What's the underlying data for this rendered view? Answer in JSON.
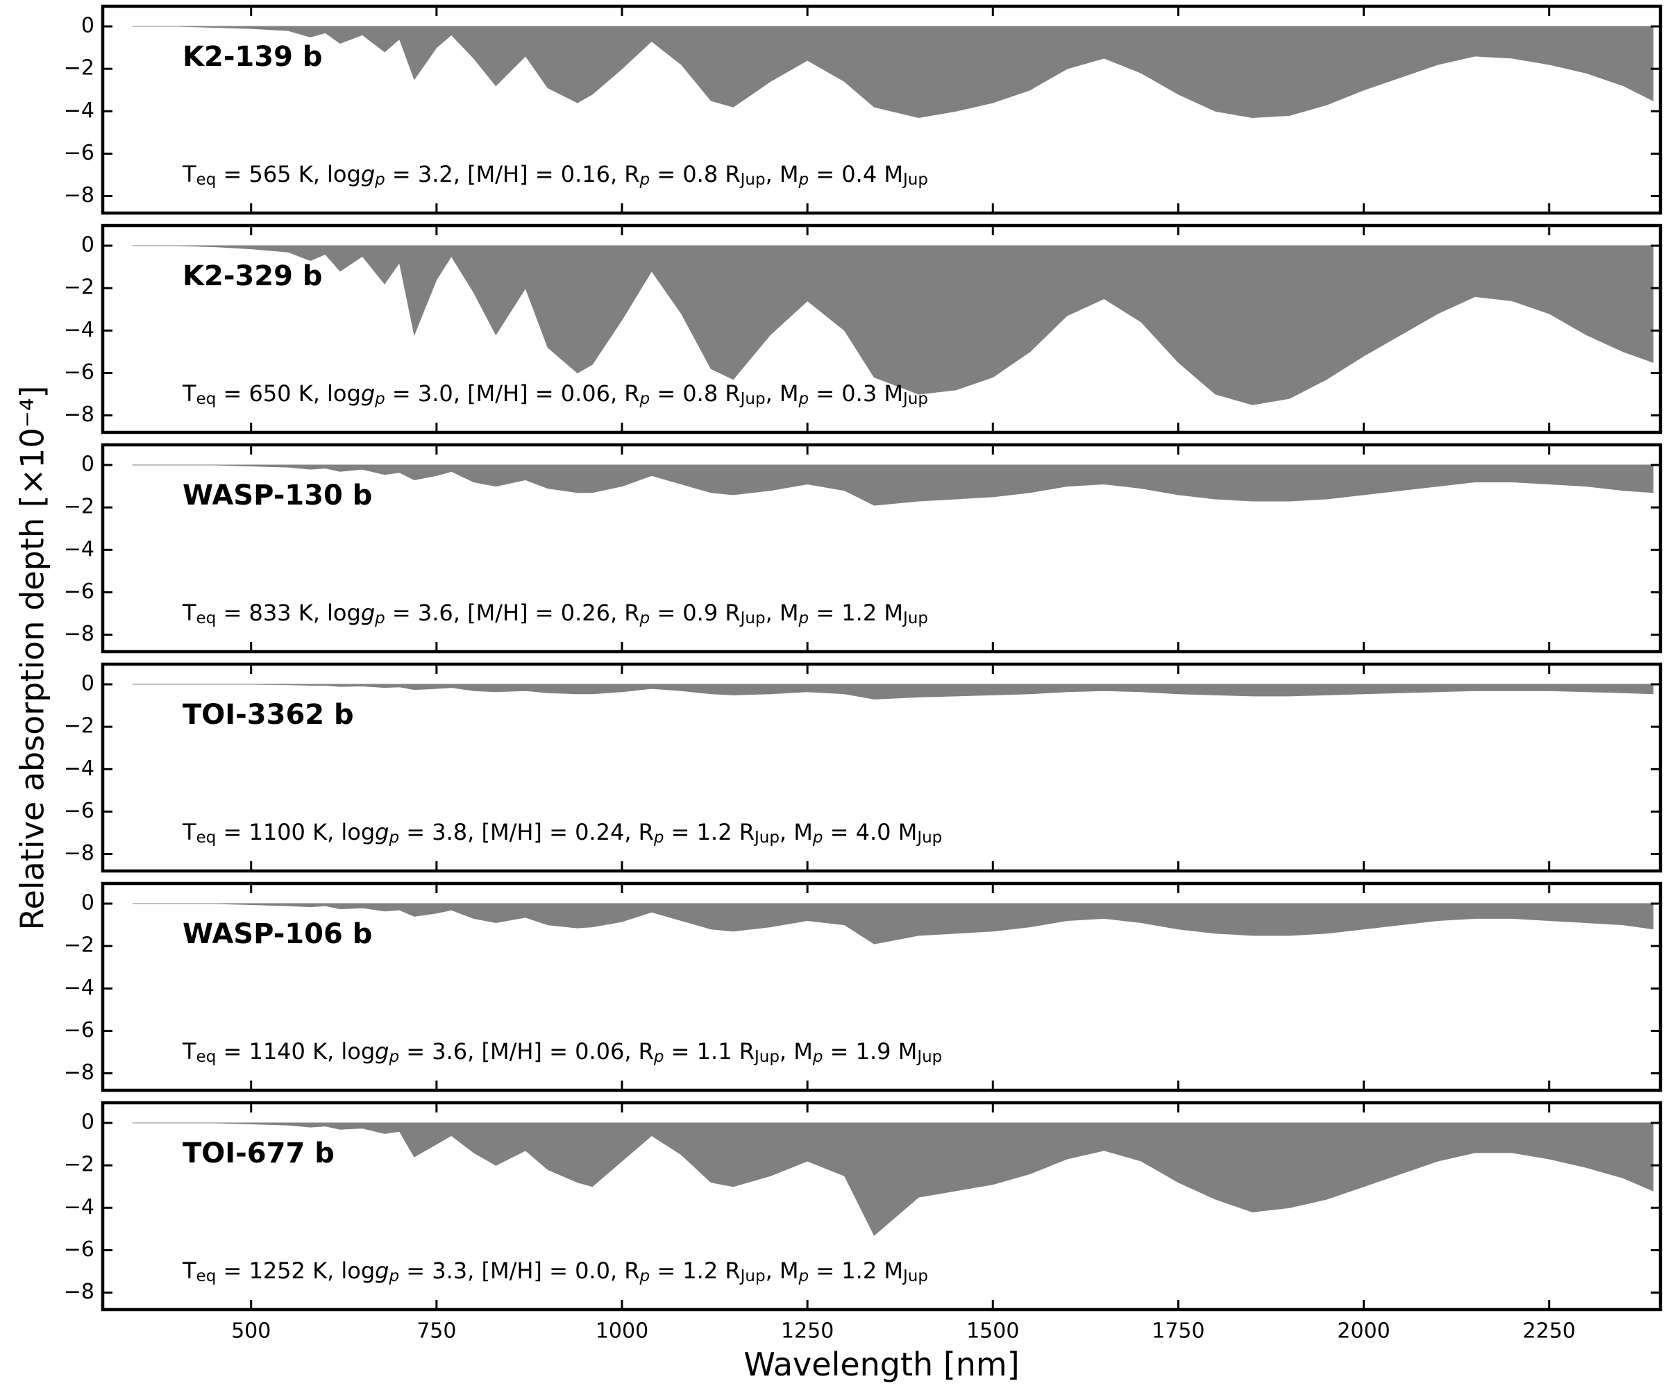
{
  "ylabel": "Relative absorption depth [×10⁻⁴]",
  "xlabel": "Wavelength [nm]",
  "chart_data": [
    {
      "type": "area",
      "name": "K2-139 b",
      "color": "#808080",
      "annotation": [
        {
          "text": "T",
          "style": "normal"
        },
        {
          "text": "eq",
          "style": "sub"
        },
        {
          "text": " = 565 K, log",
          "style": "normal"
        },
        {
          "text": "g",
          "style": "italic"
        },
        {
          "text": "p",
          "style": "italic-sub"
        },
        {
          "text": " = 3.2, [M/H] = 0.16, R",
          "style": "normal"
        },
        {
          "text": "p",
          "style": "italic-sub"
        },
        {
          "text": " = 0.8 R",
          "style": "normal"
        },
        {
          "text": "Jup",
          "style": "sub"
        },
        {
          "text": ", M",
          "style": "normal"
        },
        {
          "text": "p",
          "style": "italic-sub"
        },
        {
          "text": " = 0.4 M",
          "style": "normal"
        },
        {
          "text": "Jup",
          "style": "sub"
        }
      ],
      "x": [
        340,
        400,
        450,
        500,
        550,
        580,
        600,
        620,
        650,
        680,
        700,
        720,
        750,
        770,
        800,
        830,
        870,
        900,
        940,
        960,
        1000,
        1040,
        1080,
        1120,
        1150,
        1200,
        1250,
        1300,
        1340,
        1400,
        1450,
        1500,
        1550,
        1600,
        1650,
        1700,
        1750,
        1800,
        1850,
        1900,
        1950,
        2000,
        2050,
        2100,
        2150,
        2200,
        2250,
        2300,
        2350,
        2390
      ],
      "values": [
        0,
        0,
        -0.05,
        -0.1,
        -0.2,
        -0.5,
        -0.3,
        -0.8,
        -0.4,
        -1.2,
        -0.6,
        -2.5,
        -1.0,
        -0.4,
        -1.5,
        -2.8,
        -1.4,
        -2.9,
        -3.6,
        -3.2,
        -2.0,
        -0.7,
        -1.8,
        -3.5,
        -3.8,
        -2.6,
        -1.6,
        -2.6,
        -3.8,
        -4.3,
        -4.0,
        -3.6,
        -3.0,
        -2.0,
        -1.5,
        -2.2,
        -3.2,
        -4.0,
        -4.3,
        -4.2,
        -3.7,
        -3.0,
        -2.4,
        -1.8,
        -1.4,
        -1.5,
        -1.8,
        -2.2,
        -2.8,
        -3.5
      ],
      "xlim": [
        300,
        2400
      ],
      "xticks": [
        500,
        750,
        1000,
        1250,
        1500,
        1750,
        2000,
        2250
      ],
      "ylim": [
        -8.8,
        0.95
      ],
      "yticks": [
        -8,
        -6,
        -4,
        -2,
        0
      ]
    },
    {
      "type": "area",
      "name": "K2-329 b",
      "color": "#808080",
      "annotation": [
        {
          "text": "T",
          "style": "normal"
        },
        {
          "text": "eq",
          "style": "sub"
        },
        {
          "text": " = 650 K, log",
          "style": "normal"
        },
        {
          "text": "g",
          "style": "italic"
        },
        {
          "text": "p",
          "style": "italic-sub"
        },
        {
          "text": " = 3.0, [M/H] = 0.06, R",
          "style": "normal"
        },
        {
          "text": "p",
          "style": "italic-sub"
        },
        {
          "text": " = 0.8 R",
          "style": "normal"
        },
        {
          "text": "Jup",
          "style": "sub"
        },
        {
          "text": ", M",
          "style": "normal"
        },
        {
          "text": "p",
          "style": "italic-sub"
        },
        {
          "text": " = 0.3 M",
          "style": "normal"
        },
        {
          "text": "Jup",
          "style": "sub"
        }
      ],
      "x": [
        340,
        400,
        450,
        500,
        550,
        580,
        600,
        620,
        650,
        680,
        700,
        720,
        750,
        770,
        800,
        830,
        870,
        900,
        940,
        960,
        1000,
        1040,
        1080,
        1120,
        1150,
        1200,
        1250,
        1300,
        1340,
        1400,
        1450,
        1500,
        1550,
        1600,
        1650,
        1700,
        1750,
        1800,
        1850,
        1900,
        1950,
        2000,
        2050,
        2100,
        2150,
        2200,
        2250,
        2300,
        2350,
        2390
      ],
      "values": [
        0,
        0,
        -0.05,
        -0.15,
        -0.3,
        -0.7,
        -0.4,
        -1.2,
        -0.5,
        -1.8,
        -0.8,
        -4.2,
        -1.6,
        -0.5,
        -2.2,
        -4.2,
        -2.0,
        -4.8,
        -6.0,
        -5.6,
        -3.5,
        -1.2,
        -3.2,
        -5.8,
        -6.3,
        -4.2,
        -2.6,
        -4.0,
        -6.2,
        -7.0,
        -6.8,
        -6.2,
        -5.0,
        -3.3,
        -2.5,
        -3.6,
        -5.5,
        -7.0,
        -7.5,
        -7.2,
        -6.3,
        -5.2,
        -4.2,
        -3.2,
        -2.4,
        -2.6,
        -3.2,
        -4.2,
        -5.0,
        -5.5
      ],
      "xlim": [
        300,
        2400
      ],
      "xticks": [
        500,
        750,
        1000,
        1250,
        1500,
        1750,
        2000,
        2250
      ],
      "ylim": [
        -8.8,
        0.95
      ],
      "yticks": [
        -8,
        -6,
        -4,
        -2,
        0
      ]
    },
    {
      "type": "area",
      "name": "WASP-130 b",
      "color": "#808080",
      "annotation": [
        {
          "text": "T",
          "style": "normal"
        },
        {
          "text": "eq",
          "style": "sub"
        },
        {
          "text": " = 833 K, log",
          "style": "normal"
        },
        {
          "text": "g",
          "style": "italic"
        },
        {
          "text": "p",
          "style": "italic-sub"
        },
        {
          "text": " = 3.6, [M/H] = 0.26, R",
          "style": "normal"
        },
        {
          "text": "p",
          "style": "italic-sub"
        },
        {
          "text": " = 0.9 R",
          "style": "normal"
        },
        {
          "text": "Jup",
          "style": "sub"
        },
        {
          "text": ", M",
          "style": "normal"
        },
        {
          "text": "p",
          "style": "italic-sub"
        },
        {
          "text": " = 1.2 M",
          "style": "normal"
        },
        {
          "text": "Jup",
          "style": "sub"
        }
      ],
      "x": [
        340,
        400,
        450,
        500,
        550,
        580,
        600,
        620,
        650,
        680,
        700,
        720,
        750,
        770,
        800,
        830,
        870,
        900,
        940,
        960,
        1000,
        1040,
        1080,
        1120,
        1150,
        1200,
        1250,
        1300,
        1340,
        1400,
        1450,
        1500,
        1550,
        1600,
        1650,
        1700,
        1750,
        1800,
        1850,
        1900,
        1950,
        2000,
        2050,
        2100,
        2150,
        2200,
        2250,
        2300,
        2350,
        2390
      ],
      "values": [
        0,
        0,
        0,
        -0.05,
        -0.1,
        -0.2,
        -0.15,
        -0.3,
        -0.2,
        -0.45,
        -0.35,
        -0.7,
        -0.5,
        -0.3,
        -0.8,
        -1.0,
        -0.7,
        -1.1,
        -1.3,
        -1.3,
        -1.0,
        -0.5,
        -0.9,
        -1.3,
        -1.4,
        -1.2,
        -0.9,
        -1.2,
        -1.9,
        -1.7,
        -1.6,
        -1.5,
        -1.3,
        -1.0,
        -0.9,
        -1.1,
        -1.4,
        -1.6,
        -1.7,
        -1.7,
        -1.6,
        -1.4,
        -1.2,
        -1.0,
        -0.8,
        -0.8,
        -0.9,
        -1.0,
        -1.2,
        -1.3
      ],
      "xlim": [
        300,
        2400
      ],
      "xticks": [
        500,
        750,
        1000,
        1250,
        1500,
        1750,
        2000,
        2250
      ],
      "ylim": [
        -8.8,
        0.95
      ],
      "yticks": [
        -8,
        -6,
        -4,
        -2,
        0
      ]
    },
    {
      "type": "area",
      "name": "TOI-3362 b",
      "color": "#808080",
      "annotation": [
        {
          "text": "T",
          "style": "normal"
        },
        {
          "text": "eq",
          "style": "sub"
        },
        {
          "text": " = 1100 K, log",
          "style": "normal"
        },
        {
          "text": "g",
          "style": "italic"
        },
        {
          "text": "p",
          "style": "italic-sub"
        },
        {
          "text": " = 3.8, [M/H] = 0.24, R",
          "style": "normal"
        },
        {
          "text": "p",
          "style": "italic-sub"
        },
        {
          "text": " = 1.2 R",
          "style": "normal"
        },
        {
          "text": "Jup",
          "style": "sub"
        },
        {
          "text": ", M",
          "style": "normal"
        },
        {
          "text": "p",
          "style": "italic-sub"
        },
        {
          "text": " = 4.0 M",
          "style": "normal"
        },
        {
          "text": "Jup",
          "style": "sub"
        }
      ],
      "x": [
        340,
        400,
        450,
        500,
        550,
        580,
        600,
        620,
        650,
        680,
        700,
        720,
        750,
        770,
        800,
        830,
        870,
        900,
        940,
        960,
        1000,
        1040,
        1080,
        1120,
        1150,
        1200,
        1250,
        1300,
        1340,
        1400,
        1450,
        1500,
        1550,
        1600,
        1650,
        1700,
        1750,
        1800,
        1850,
        1900,
        1950,
        2000,
        2050,
        2100,
        2150,
        2200,
        2250,
        2300,
        2350,
        2390
      ],
      "values": [
        0,
        0,
        0,
        0,
        -0.02,
        -0.05,
        -0.05,
        -0.1,
        -0.08,
        -0.15,
        -0.12,
        -0.25,
        -0.2,
        -0.15,
        -0.3,
        -0.35,
        -0.3,
        -0.4,
        -0.45,
        -0.45,
        -0.35,
        -0.2,
        -0.3,
        -0.45,
        -0.5,
        -0.45,
        -0.35,
        -0.45,
        -0.7,
        -0.6,
        -0.55,
        -0.5,
        -0.45,
        -0.35,
        -0.3,
        -0.35,
        -0.45,
        -0.5,
        -0.55,
        -0.55,
        -0.5,
        -0.45,
        -0.4,
        -0.35,
        -0.3,
        -0.3,
        -0.3,
        -0.35,
        -0.4,
        -0.45
      ],
      "xlim": [
        300,
        2400
      ],
      "xticks": [
        500,
        750,
        1000,
        1250,
        1500,
        1750,
        2000,
        2250
      ],
      "ylim": [
        -8.8,
        0.95
      ],
      "yticks": [
        -8,
        -6,
        -4,
        -2,
        0
      ]
    },
    {
      "type": "area",
      "name": "WASP-106 b",
      "color": "#808080",
      "annotation": [
        {
          "text": "T",
          "style": "normal"
        },
        {
          "text": "eq",
          "style": "sub"
        },
        {
          "text": " = 1140 K, log",
          "style": "normal"
        },
        {
          "text": "g",
          "style": "italic"
        },
        {
          "text": "p",
          "style": "italic-sub"
        },
        {
          "text": " = 3.6, [M/H] = 0.06, R",
          "style": "normal"
        },
        {
          "text": "p",
          "style": "italic-sub"
        },
        {
          "text": " = 1.1 R",
          "style": "normal"
        },
        {
          "text": "Jup",
          "style": "sub"
        },
        {
          "text": ", M",
          "style": "normal"
        },
        {
          "text": "p",
          "style": "italic-sub"
        },
        {
          "text": " = 1.9 M",
          "style": "normal"
        },
        {
          "text": "Jup",
          "style": "sub"
        }
      ],
      "x": [
        340,
        400,
        450,
        500,
        550,
        580,
        600,
        620,
        650,
        680,
        700,
        720,
        750,
        770,
        800,
        830,
        870,
        900,
        940,
        960,
        1000,
        1040,
        1080,
        1120,
        1150,
        1200,
        1250,
        1300,
        1340,
        1400,
        1450,
        1500,
        1550,
        1600,
        1650,
        1700,
        1750,
        1800,
        1850,
        1900,
        1950,
        2000,
        2050,
        2100,
        2150,
        2200,
        2250,
        2300,
        2350,
        2390
      ],
      "values": [
        0,
        0,
        0,
        -0.05,
        -0.1,
        -0.15,
        -0.1,
        -0.25,
        -0.2,
        -0.35,
        -0.3,
        -0.6,
        -0.45,
        -0.3,
        -0.7,
        -0.9,
        -0.65,
        -1.0,
        -1.15,
        -1.1,
        -0.85,
        -0.4,
        -0.8,
        -1.2,
        -1.3,
        -1.1,
        -0.8,
        -1.0,
        -1.9,
        -1.5,
        -1.4,
        -1.3,
        -1.1,
        -0.8,
        -0.7,
        -0.9,
        -1.2,
        -1.4,
        -1.5,
        -1.5,
        -1.4,
        -1.2,
        -1.0,
        -0.8,
        -0.7,
        -0.7,
        -0.8,
        -0.9,
        -1.0,
        -1.2
      ],
      "xlim": [
        300,
        2400
      ],
      "xticks": [
        500,
        750,
        1000,
        1250,
        1500,
        1750,
        2000,
        2250
      ],
      "ylim": [
        -8.8,
        0.95
      ],
      "yticks": [
        -8,
        -6,
        -4,
        -2,
        0
      ]
    },
    {
      "type": "area",
      "name": "TOI-677 b",
      "color": "#808080",
      "annotation": [
        {
          "text": "T",
          "style": "normal"
        },
        {
          "text": "eq",
          "style": "sub"
        },
        {
          "text": " = 1252 K, log",
          "style": "normal"
        },
        {
          "text": "g",
          "style": "italic"
        },
        {
          "text": "p",
          "style": "italic-sub"
        },
        {
          "text": " = 3.3, [M/H] = 0.0, R",
          "style": "normal"
        },
        {
          "text": "p",
          "style": "italic-sub"
        },
        {
          "text": " = 1.2 R",
          "style": "normal"
        },
        {
          "text": "Jup",
          "style": "sub"
        },
        {
          "text": ", M",
          "style": "normal"
        },
        {
          "text": "p",
          "style": "italic-sub"
        },
        {
          "text": " = 1.2 M",
          "style": "normal"
        },
        {
          "text": "Jup",
          "style": "sub"
        }
      ],
      "x": [
        340,
        400,
        450,
        500,
        550,
        580,
        600,
        620,
        650,
        680,
        700,
        720,
        750,
        770,
        800,
        830,
        870,
        900,
        940,
        960,
        1000,
        1040,
        1080,
        1120,
        1150,
        1200,
        1250,
        1300,
        1340,
        1400,
        1450,
        1500,
        1550,
        1600,
        1650,
        1700,
        1750,
        1800,
        1850,
        1900,
        1950,
        2000,
        2050,
        2100,
        2150,
        2200,
        2250,
        2300,
        2350,
        2390
      ],
      "values": [
        0,
        0,
        0,
        -0.05,
        -0.1,
        -0.2,
        -0.15,
        -0.3,
        -0.25,
        -0.5,
        -0.4,
        -1.6,
        -1.0,
        -0.6,
        -1.4,
        -2.0,
        -1.3,
        -2.2,
        -2.8,
        -3.0,
        -1.8,
        -0.6,
        -1.5,
        -2.8,
        -3.0,
        -2.5,
        -1.8,
        -2.5,
        -5.3,
        -3.5,
        -3.2,
        -2.9,
        -2.4,
        -1.7,
        -1.3,
        -1.8,
        -2.8,
        -3.6,
        -4.2,
        -4.0,
        -3.6,
        -3.0,
        -2.4,
        -1.8,
        -1.4,
        -1.4,
        -1.7,
        -2.1,
        -2.6,
        -3.2
      ],
      "xlim": [
        300,
        2400
      ],
      "xticks": [
        500,
        750,
        1000,
        1250,
        1500,
        1750,
        2000,
        2250
      ],
      "ylim": [
        -8.8,
        0.95
      ],
      "yticks": [
        -8,
        -6,
        -4,
        -2,
        0
      ]
    }
  ]
}
